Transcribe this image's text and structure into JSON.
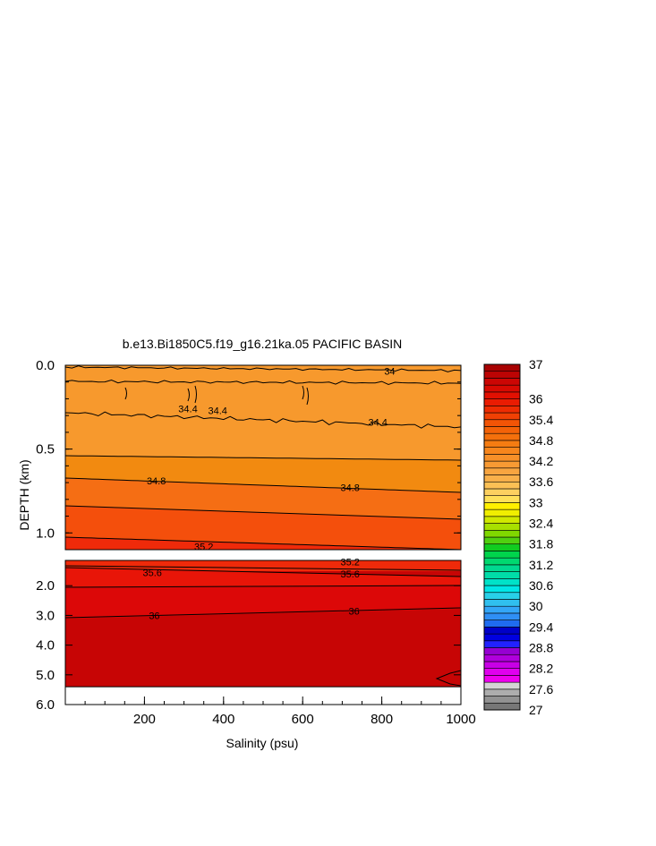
{
  "chart_data": {
    "type": "heatmap",
    "title": "b.e13.Bi1850C5.f19_g16.21ka.05 PACIFIC BASIN",
    "xlabel": "Salinity (psu)",
    "ylabel": "DEPTH (km)",
    "xlim": [
      0,
      1000
    ],
    "x_ticks": [
      "200",
      "400",
      "600",
      "800",
      "1000"
    ],
    "upper_panel": {
      "ylim": [
        0,
        1.1
      ],
      "y_ticks": [
        "0.0",
        "0.5",
        "1.0"
      ],
      "bands": [
        {
          "value": 34.2,
          "color": "#f8b04d"
        },
        {
          "value": 34.6,
          "color": "#f7992d"
        },
        {
          "value": 34.8,
          "color": "#f28a10"
        },
        {
          "value": 35.0,
          "color": "#f56e14"
        },
        {
          "value": 35.2,
          "color": "#f44f0c"
        },
        {
          "value": 35.4,
          "color": "#ef2a0a"
        }
      ],
      "contour_labels": [
        {
          "text": "34",
          "x": 820,
          "y": 0.035
        },
        {
          "text": "34.4",
          "x": 790,
          "y": 0.34
        },
        {
          "text": "34.4",
          "x": 310,
          "y": 0.26
        },
        {
          "text": "34.4",
          "x": 385,
          "y": 0.27
        },
        {
          "text": "34.8",
          "x": 230,
          "y": 0.69
        },
        {
          "text": "34.8",
          "x": 720,
          "y": 0.73
        },
        {
          "text": "35.2",
          "x": 350,
          "y": 1.08
        }
      ]
    },
    "lower_panel": {
      "ylim": [
        1.15,
        6.0
      ],
      "y_ticks": [
        "2.0",
        "3.0",
        "4.0",
        "5.0",
        "6.0"
      ],
      "data_bottom": 5.4,
      "bands": [
        {
          "value": 35.4,
          "color": "#ef2a0a"
        },
        {
          "value": 35.6,
          "color": "#e81508"
        },
        {
          "value": 35.8,
          "color": "#dc0808"
        },
        {
          "value": 36.0,
          "color": "#c70505"
        }
      ],
      "contour_labels": [
        {
          "text": "35.2",
          "x": 720,
          "y": 1.2
        },
        {
          "text": "35.6",
          "x": 220,
          "y": 1.55
        },
        {
          "text": "35.6",
          "x": 720,
          "y": 1.6
        },
        {
          "text": "36",
          "x": 225,
          "y": 3.0
        },
        {
          "text": "36",
          "x": 730,
          "y": 2.85
        }
      ]
    },
    "colorbar": {
      "min": 27,
      "max": 37,
      "labels": [
        "37",
        "36",
        "35.4",
        "34.8",
        "34.2",
        "33.6",
        "33",
        "32.4",
        "31.8",
        "31.2",
        "30.6",
        "30",
        "29.4",
        "28.8",
        "28.2",
        "27.6",
        "27"
      ],
      "label_values": [
        37,
        36,
        35.4,
        34.8,
        34.2,
        33.6,
        33,
        32.4,
        31.8,
        31.2,
        30.6,
        30,
        29.4,
        28.8,
        28.2,
        27.6,
        27
      ],
      "levels": [
        27,
        27.2,
        27.4,
        27.6,
        27.8,
        28,
        28.2,
        28.4,
        28.6,
        28.8,
        29,
        29.2,
        29.4,
        29.6,
        29.8,
        30,
        30.2,
        30.4,
        30.6,
        30.8,
        31,
        31.2,
        31.4,
        31.6,
        31.8,
        32,
        32.2,
        32.4,
        32.6,
        32.8,
        33,
        33.2,
        33.4,
        33.6,
        33.8,
        34,
        34.2,
        34.4,
        34.6,
        34.8,
        35,
        35.2,
        35.4,
        35.6,
        35.8,
        36,
        36.2,
        36.4,
        36.6,
        36.8
      ],
      "colors": [
        "#777777",
        "#929292",
        "#adadad",
        "#d4d4d4",
        "#ee00ee",
        "#e000ee",
        "#c800e6",
        "#b000dc",
        "#9600d2",
        "#2222ff",
        "#0000e0",
        "#0000c8",
        "#1f6cf0",
        "#2f8ff5",
        "#33a6f7",
        "#30bfee",
        "#28d0e8",
        "#00e6e6",
        "#00e2c8",
        "#00dca8",
        "#00d890",
        "#00d870",
        "#00d44c",
        "#10cc20",
        "#50d010",
        "#80d800",
        "#a8e000",
        "#d0e800",
        "#f0ee00",
        "#fff000",
        "#fee05a",
        "#fcd060",
        "#fbc055",
        "#f9b04a",
        "#f8a540",
        "#f89a33",
        "#f79028",
        "#f7861c",
        "#f57c12",
        "#f4700c",
        "#f36208",
        "#f25406",
        "#f04004",
        "#ee2c02",
        "#ea1c02",
        "#e21002",
        "#d80a02",
        "#cc0604",
        "#bc0404",
        "#a80202"
      ]
    }
  }
}
